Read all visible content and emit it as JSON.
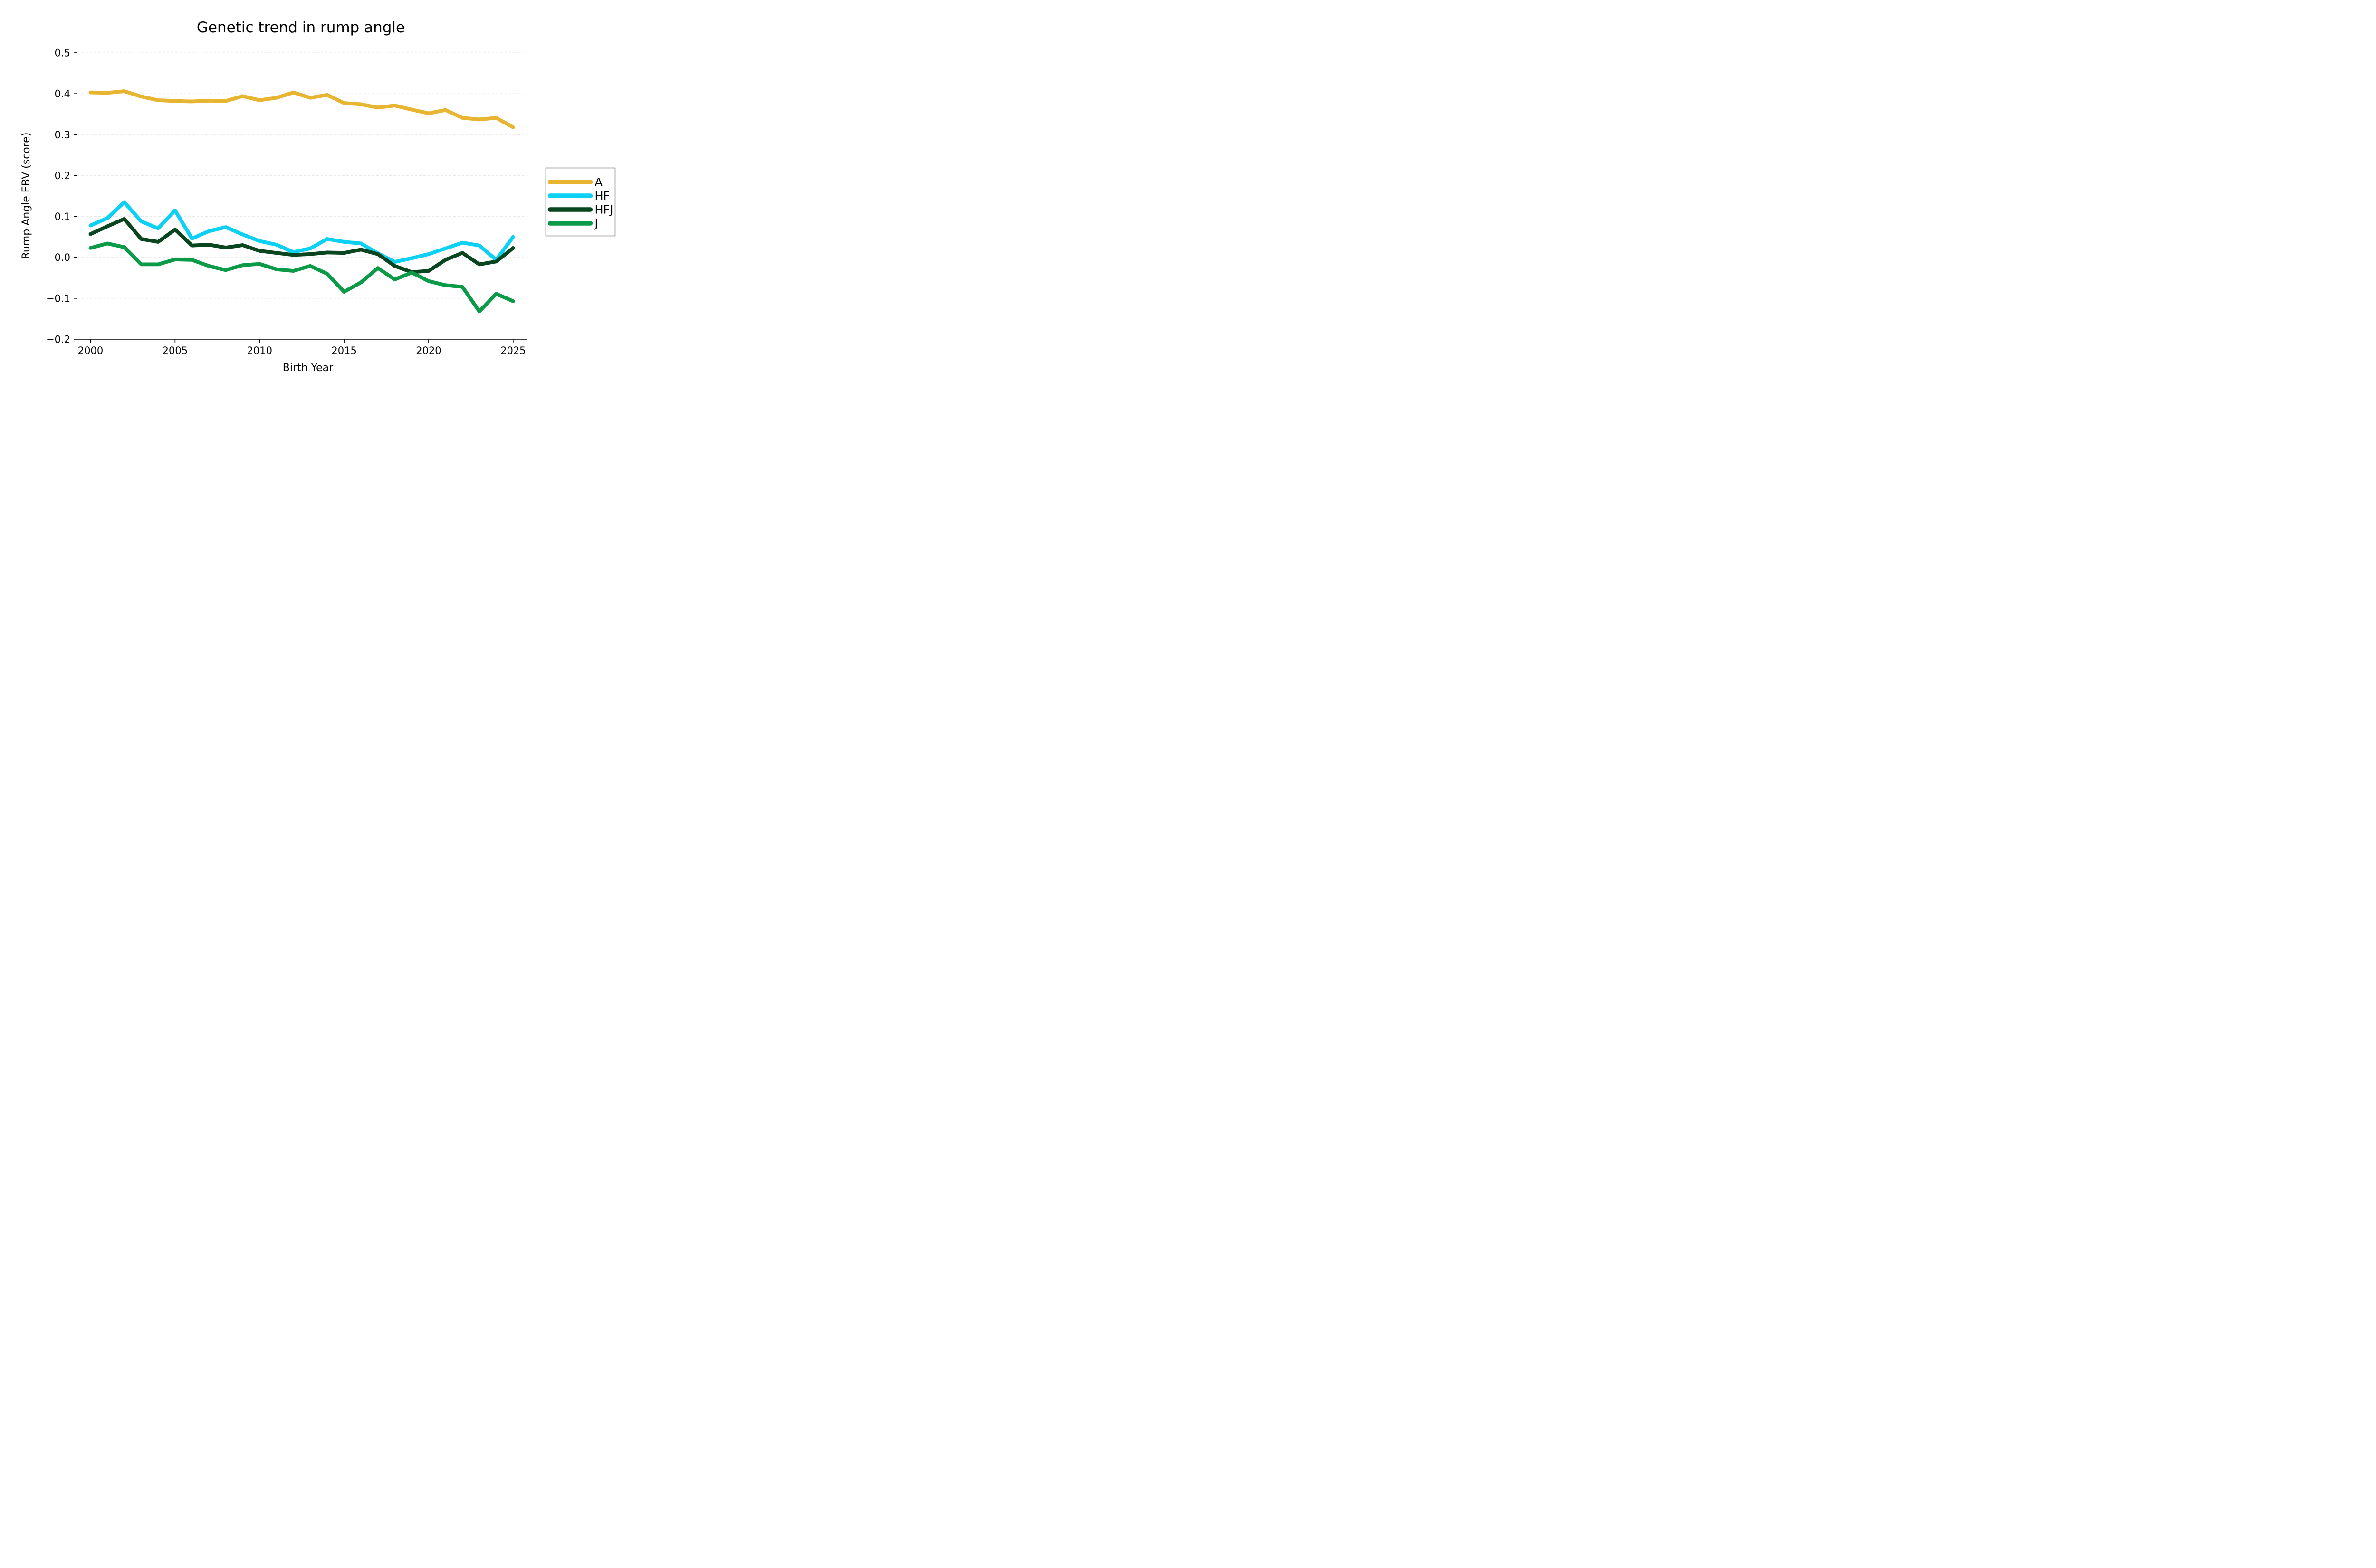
{
  "title": "Genetic trend in rump angle",
  "chart_data": {
    "type": "line",
    "title": "Genetic trend in rump angle",
    "xlabel": "Birth Year",
    "ylabel": "Rump Angle EBV (score)",
    "x": [
      2000,
      2001,
      2002,
      2003,
      2004,
      2005,
      2006,
      2007,
      2008,
      2009,
      2010,
      2011,
      2012,
      2013,
      2014,
      2015,
      2016,
      2017,
      2018,
      2019,
      2020,
      2021,
      2022,
      2023,
      2024,
      2025
    ],
    "xtick_values": [
      2000,
      2005,
      2010,
      2015,
      2020,
      2025
    ],
    "xtick_labels": [
      "2000",
      "2005",
      "2010",
      "2015",
      "2020",
      "2025"
    ],
    "ytick_values": [
      0.5,
      0.4,
      0.3,
      0.2,
      0.1,
      0.0,
      -0.1,
      -0.2
    ],
    "ytick_labels": [
      "0.5",
      "0.4",
      "0.3",
      "0.2",
      "0.1",
      "0.0",
      "−0.1",
      "−0.2"
    ],
    "ylim": [
      -0.2,
      0.5
    ],
    "xlim": [
      1999.2,
      2025.85
    ],
    "grid": "horizontal-dashed",
    "legend_position": "right-outside",
    "series": [
      {
        "name": "A",
        "color": "#E7B52F",
        "values": [
          0.403,
          0.402,
          0.406,
          0.393,
          0.384,
          0.382,
          0.381,
          0.383,
          0.382,
          0.394,
          0.384,
          0.39,
          0.403,
          0.39,
          0.397,
          0.377,
          0.374,
          0.366,
          0.371,
          0.361,
          0.352,
          0.36,
          0.341,
          0.337,
          0.341,
          0.318
        ]
      },
      {
        "name": "HF",
        "color": "#0CD0F4",
        "values": [
          0.078,
          0.096,
          0.135,
          0.088,
          0.071,
          0.115,
          0.046,
          0.064,
          0.074,
          0.056,
          0.04,
          0.031,
          0.013,
          0.022,
          0.045,
          0.038,
          0.034,
          0.01,
          -0.011,
          -0.002,
          0.008,
          0.022,
          0.036,
          0.029,
          -0.006,
          0.05
        ]
      },
      {
        "name": "HFJ",
        "color": "#09451F",
        "values": [
          0.057,
          0.076,
          0.094,
          0.045,
          0.038,
          0.068,
          0.029,
          0.031,
          0.024,
          0.03,
          0.016,
          0.011,
          0.006,
          0.008,
          0.012,
          0.011,
          0.019,
          0.008,
          -0.021,
          -0.036,
          -0.033,
          -0.006,
          0.011,
          -0.017,
          -0.01,
          0.023
        ]
      },
      {
        "name": "J",
        "color": "#0A9A48",
        "values": [
          0.023,
          0.034,
          0.025,
          -0.017,
          -0.017,
          -0.005,
          -0.006,
          -0.021,
          -0.031,
          -0.019,
          -0.016,
          -0.029,
          -0.033,
          -0.021,
          -0.04,
          -0.084,
          -0.061,
          -0.026,
          -0.054,
          -0.037,
          -0.058,
          -0.068,
          -0.072,
          -0.132,
          -0.089,
          -0.107
        ]
      }
    ]
  },
  "colors": {
    "axis": "#000000",
    "grid": "#e9e9e9",
    "background": "#ffffff",
    "legend_border": "#000000"
  }
}
